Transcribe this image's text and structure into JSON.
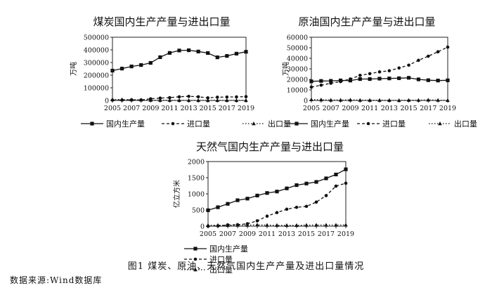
{
  "figure": {
    "caption": "图1  煤炭、原油、天然气国内生产产量及进出口量情况",
    "source": "数据来源:Wind数据库"
  },
  "chart_data": [
    {
      "type": "line",
      "title": "煤炭国内生产产量与进出口量",
      "ylabel": "万吨",
      "xlabel": "",
      "ylim": [
        0,
        500000
      ],
      "yticks": [
        0,
        100000,
        200000,
        300000,
        400000,
        500000
      ],
      "xticks": [
        2005,
        2007,
        2009,
        2011,
        2013,
        2015,
        2017,
        2019
      ],
      "x": [
        2005,
        2006,
        2007,
        2008,
        2009,
        2010,
        2011,
        2012,
        2013,
        2014,
        2015,
        2016,
        2017,
        2018,
        2019
      ],
      "grid": false,
      "legend_position": "bottom",
      "series": [
        {
          "name": "国内生产量",
          "style": "solid",
          "marker": "square",
          "values": [
            236000,
            252000,
            269000,
            280000,
            297000,
            342000,
            376000,
            395000,
            397000,
            387000,
            375000,
            341000,
            352000,
            370000,
            385000
          ]
        },
        {
          "name": "进口量",
          "style": "dashed",
          "marker": "circle",
          "values": [
            2600,
            3800,
            5100,
            4000,
            12600,
            18300,
            22200,
            28800,
            32700,
            29100,
            20400,
            25600,
            27100,
            28100,
            30000
          ]
        },
        {
          "name": "出口量",
          "style": "dotted",
          "marker": "triangle",
          "values": [
            7200,
            6300,
            5300,
            4500,
            2200,
            1900,
            1500,
            900,
            700,
            600,
            500,
            900,
            800,
            500,
            600
          ]
        }
      ]
    },
    {
      "type": "line",
      "title": "原油国内生产产量与进出口量",
      "ylabel": "万吨",
      "xlabel": "",
      "ylim": [
        0,
        60000
      ],
      "yticks": [
        0,
        10000,
        20000,
        30000,
        40000,
        50000,
        60000
      ],
      "xticks": [
        2005,
        2007,
        2009,
        2011,
        2013,
        2015,
        2017,
        2019
      ],
      "x": [
        2005,
        2006,
        2007,
        2008,
        2009,
        2010,
        2011,
        2012,
        2013,
        2014,
        2015,
        2016,
        2017,
        2018,
        2019
      ],
      "grid": false,
      "legend_position": "bottom",
      "series": [
        {
          "name": "国内生产量",
          "style": "solid",
          "marker": "square",
          "values": [
            18100,
            18500,
            18600,
            19000,
            18900,
            20300,
            20300,
            20700,
            20900,
            21100,
            21500,
            20000,
            19200,
            18900,
            19100
          ]
        },
        {
          "name": "进口量",
          "style": "dashed",
          "marker": "circle",
          "values": [
            12700,
            14500,
            16300,
            17900,
            20400,
            23800,
            25400,
            27100,
            28200,
            30800,
            33500,
            38100,
            42000,
            46200,
            50600
          ]
        },
        {
          "name": "出口量",
          "style": "dotted",
          "marker": "triangle",
          "values": [
            800,
            630,
            390,
            420,
            510,
            300,
            250,
            240,
            160,
            60,
            290,
            290,
            490,
            260,
            80
          ]
        }
      ]
    },
    {
      "type": "line",
      "title": "天然气国内生产产量与进出口量",
      "ylabel": "亿立方米",
      "xlabel": "",
      "ylim": [
        0,
        2000
      ],
      "yticks": [
        0,
        500,
        1000,
        1500,
        2000
      ],
      "xticks": [
        2005,
        2007,
        2009,
        2011,
        2013,
        2015,
        2017,
        2019
      ],
      "x": [
        2005,
        2006,
        2007,
        2008,
        2009,
        2010,
        2011,
        2012,
        2013,
        2014,
        2015,
        2016,
        2017,
        2018,
        2019
      ],
      "grid": false,
      "legend_position": "bottom",
      "series": [
        {
          "name": "国内生产量",
          "style": "solid",
          "marker": "square",
          "values": [
            493,
            586,
            692,
            803,
            853,
            948,
            1027,
            1072,
            1170,
            1270,
            1320,
            1370,
            1480,
            1600,
            1760
          ]
        },
        {
          "name": "进口量",
          "style": "dashed",
          "marker": "circle",
          "values": [
            0,
            10,
            40,
            46,
            76,
            165,
            311,
            421,
            525,
            584,
            614,
            745,
            946,
            1240,
            1330
          ]
        },
        {
          "name": "出口量",
          "style": "dotted",
          "marker": "triangle",
          "values": [
            30,
            29,
            26,
            32,
            32,
            40,
            32,
            29,
            27,
            26,
            32,
            34,
            35,
            34,
            36
          ]
        }
      ]
    }
  ]
}
